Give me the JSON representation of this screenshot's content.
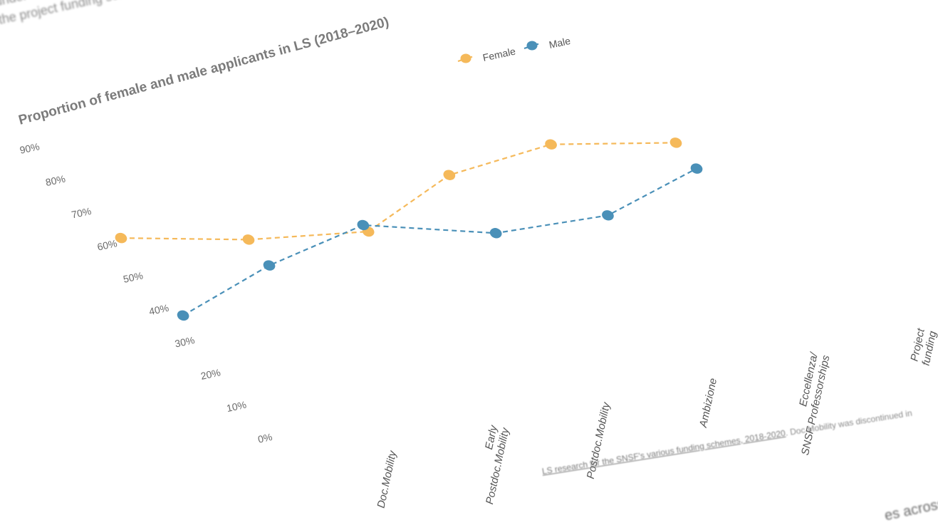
{
  "page": {
    "intro_line1": "under ...",
    "intro_line2": "the project funding scheme ...",
    "footnote_link": "LS research for the SNSF's various funding schemes, 2018-2020",
    "footnote_rest": ". Doc.Mobility was discontinued in",
    "next_heading": "es across ca"
  },
  "chart_data": {
    "type": "line",
    "title": "Proportion of female and male applicants in LS (2018–2020)",
    "categories": [
      "Doc.Mobility",
      "Early Postdoc.Mobility",
      "Postdoc.Mobility",
      "Ambizione",
      "Eccellenza/ SNSF Professorships",
      "Project funding"
    ],
    "category_lines": [
      [
        "Doc.Mobility"
      ],
      [
        "Early",
        "Postdoc.Mobility"
      ],
      [
        "Postdoc.Mobility"
      ],
      [
        "Ambizione"
      ],
      [
        "Eccellenza/",
        "SNSF Professorships"
      ],
      [
        "Project",
        "funding"
      ]
    ],
    "yticks": [
      "0%",
      "10%",
      "20%",
      "30%",
      "40%",
      "50%",
      "60%",
      "70%",
      "80%",
      "90%"
    ],
    "ylim": [
      0,
      90
    ],
    "series": [
      {
        "name": "Female",
        "color": "#f5b95a",
        "values": [
          62,
          54,
          49,
          59,
          61,
          54
        ]
      },
      {
        "name": "Male",
        "color": "#4a90b8",
        "values": [
          38,
          46,
          51,
          41,
          39,
          46
        ]
      }
    ],
    "legend_position": "top-right",
    "grid": false
  }
}
